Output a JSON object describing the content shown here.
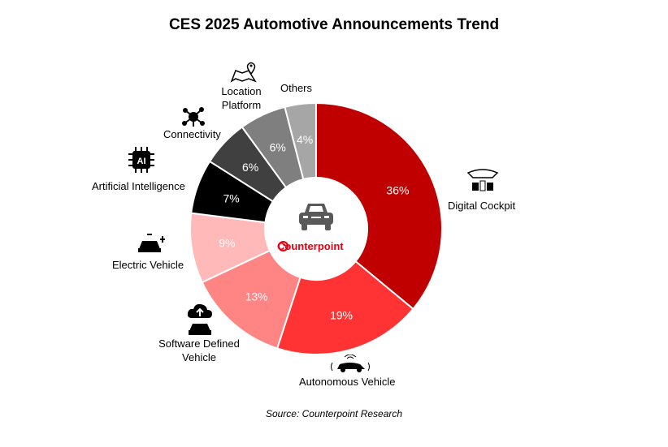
{
  "chart_data": {
    "type": "pie",
    "donut": true,
    "title": "CES 2025 Automotive Announcements Trend",
    "unit": "%",
    "start": "12 o'clock, clockwise",
    "slices": [
      {
        "label": "Digital Cockpit",
        "value": 36,
        "color": "#c00000",
        "icon": "cockpit-seats-icon"
      },
      {
        "label": "Autonomous Vehicle",
        "value": 19,
        "color": "#ff3333",
        "icon": "autonomous-car-sensor-icon"
      },
      {
        "label": "Software Defined Vehicle",
        "value": 13,
        "color": "#ff8585",
        "icon": "cloud-upload-car-icon"
      },
      {
        "label": "Electric Vehicle",
        "value": 9,
        "color": "#ffb9b9",
        "icon": "ev-plug-car-icon"
      },
      {
        "label": "Artificial Intelligence",
        "value": 7,
        "color": "#000000",
        "icon": "ai-chip-icon"
      },
      {
        "label": "Connectivity",
        "value": 6,
        "color": "#404040",
        "icon": "network-nodes-icon"
      },
      {
        "label": "Location Platform",
        "value": 6,
        "color": "#7f7f7f",
        "icon": "map-pin-icon"
      },
      {
        "label": "Others",
        "value": 4,
        "color": "#a6a6a6",
        "icon": ""
      }
    ],
    "center_logo": "Counterpoint",
    "source": "Source: Counterpoint Research"
  }
}
